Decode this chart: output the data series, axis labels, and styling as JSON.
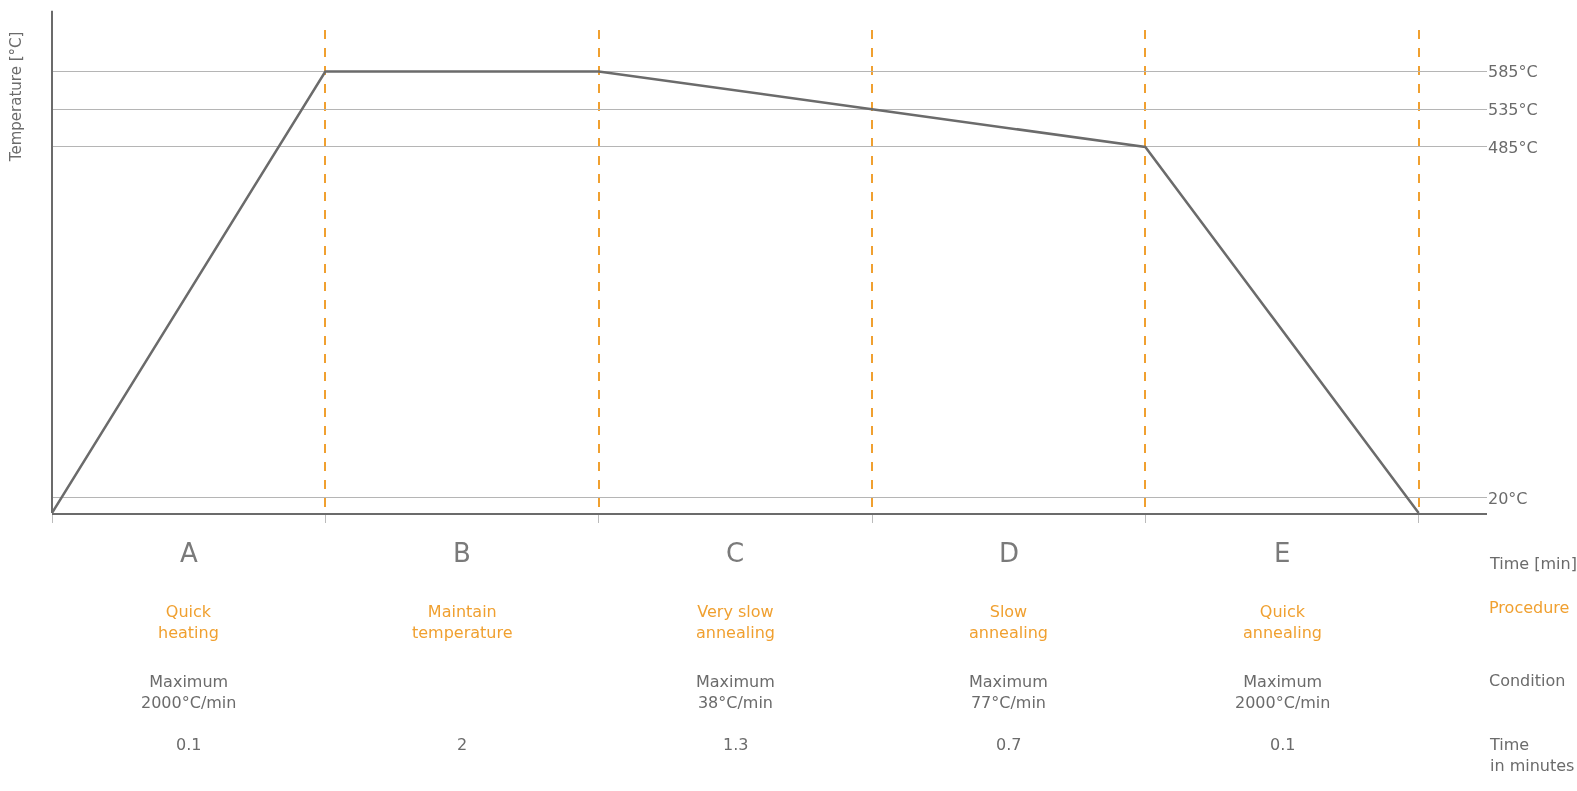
{
  "chart_data": {
    "type": "line",
    "ylabel": "Temperature [°C]",
    "xlabel": "Time [min]",
    "categories": [
      null,
      null,
      null,
      null,
      null,
      null
    ],
    "series": [
      {
        "color": "#6b6b6b",
        "values": [
          0,
          585,
          585,
          535,
          485,
          0
        ]
      }
    ],
    "ylim": [
      0,
      640
    ],
    "yticks": [
      {
        "value": 20,
        "label": "20°C"
      },
      {
        "value": 485,
        "label": "485°C"
      },
      {
        "value": 535,
        "label": "535°C"
      },
      {
        "value": 585,
        "label": "585°C"
      }
    ],
    "grid": true,
    "marker": "none",
    "line_style": "solid",
    "legend": false,
    "annotations": [
      "A",
      "B",
      "C",
      "D",
      "E",
      "Quick\nheating",
      "Maintain\ntemperature",
      "Very slow\nannealing",
      "Slow\nannealing",
      "Quick\nannealing",
      "Maximum\n2000°C/min",
      "Maximum\n38°C/min",
      "Maximum\n77°C/min",
      "Maximum\n2000°C/min",
      "0.1",
      "2",
      "1.3",
      "0.7",
      "0.1",
      "Procedure",
      "Condition",
      "Time\nin minutes"
    ]
  }
}
